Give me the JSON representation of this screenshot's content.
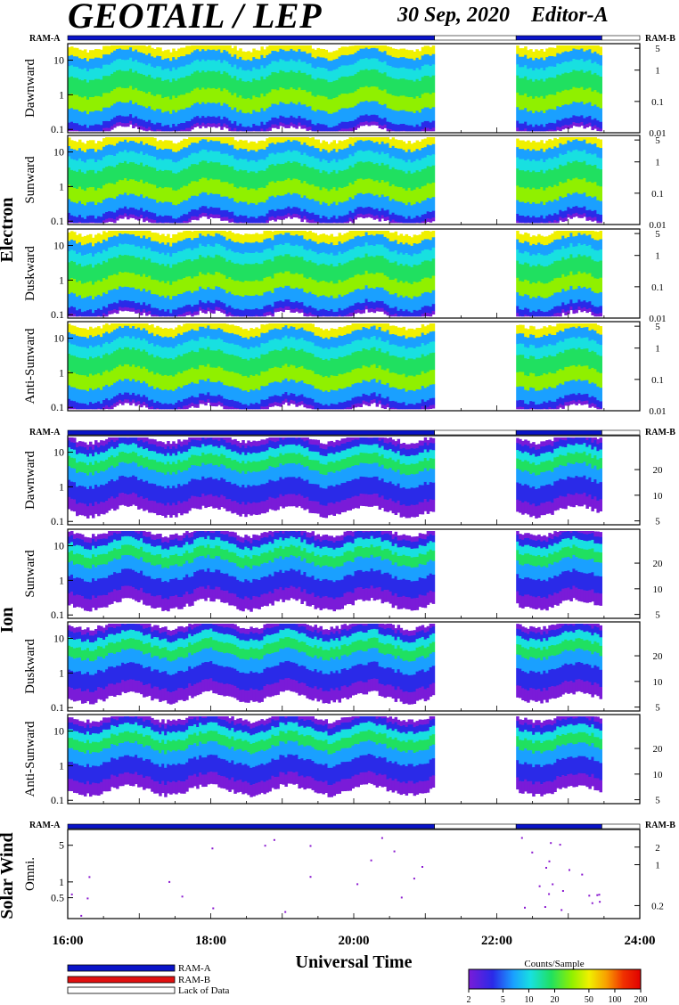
{
  "header": {
    "title": "GEOTAIL / LEP",
    "date": "30 Sep, 2020",
    "editor": "Editor-A"
  },
  "colors": {
    "ram_a": "#0a14c8",
    "ram_b": "#e01010",
    "lack_of_data": "#ffffff",
    "colorbar": [
      "#7a1bd8",
      "#2a2ae8",
      "#1aa0ff",
      "#18e0e0",
      "#20e060",
      "#90f000",
      "#f0f000",
      "#f8a000",
      "#f03000",
      "#e00000"
    ]
  },
  "legend": {
    "ram_a": "RAM-A",
    "ram_b": "RAM-B",
    "lack": "Lack of Data"
  },
  "colorbar": {
    "title": "Counts/Sample",
    "ticks": [
      "2",
      "5",
      "10",
      "20",
      "50",
      "100",
      "200"
    ]
  },
  "sections": {
    "electron": "Electron",
    "ion": "Ion",
    "solar_wind": "Solar Wind"
  },
  "x_axis": {
    "title": "Universal Time",
    "ticks": [
      "16:00",
      "18:00",
      "20:00",
      "22:00",
      "24:00"
    ]
  },
  "chart_data": {
    "type": "heatmap",
    "title": "GEOTAIL / LEP",
    "x_range_ut_hours": [
      16,
      24
    ],
    "x_ticks": [
      "16:00",
      "18:00",
      "20:00",
      "22:00",
      "24:00"
    ],
    "x_label": "Universal Time",
    "mode_bar": [
      {
        "mode": "RAM-A",
        "start": 16.0,
        "end": 21.13
      },
      {
        "mode": "Lack of Data",
        "start": 21.13,
        "end": 22.27
      },
      {
        "mode": "RAM-A",
        "start": 22.27,
        "end": 23.47
      },
      {
        "mode": "Lack of Data",
        "start": 23.47,
        "end": 24.0
      }
    ],
    "data_coverage": [
      [
        16.0,
        21.13
      ],
      [
        22.27,
        23.47
      ]
    ],
    "colorbar": {
      "label": "Counts/Sample",
      "range": [
        2,
        200
      ],
      "scale": "log"
    },
    "groups": [
      {
        "name": "Electron",
        "panels": [
          {
            "label": "Dawnward",
            "left_ticks": [
              "10",
              "1",
              "0.1"
            ],
            "right_ticks": [
              "5",
              "1",
              "0.1",
              "0.01"
            ]
          },
          {
            "label": "Sunward",
            "left_ticks": [
              "10",
              "1",
              "0.1"
            ],
            "right_ticks": [
              "5",
              "1",
              "0.1",
              "0.01"
            ]
          },
          {
            "label": "Duskward",
            "left_ticks": [
              "10",
              "1",
              "0.1"
            ],
            "right_ticks": [
              "5",
              "1",
              "0.1",
              "0.01"
            ]
          },
          {
            "label": "Anti-Sunward",
            "left_ticks": [
              "10",
              "1",
              "0.1"
            ],
            "right_ticks": [
              "5",
              "1",
              "0.1",
              "0.01"
            ]
          }
        ]
      },
      {
        "name": "Ion",
        "panels": [
          {
            "label": "Dawnward",
            "left_ticks": [
              "10",
              "1",
              "0.1"
            ],
            "right_ticks": [
              "20",
              "10",
              "5"
            ]
          },
          {
            "label": "Sunward",
            "left_ticks": [
              "10",
              "1",
              "0.1"
            ],
            "right_ticks": [
              "20",
              "10",
              "5"
            ]
          },
          {
            "label": "Duskward",
            "left_ticks": [
              "10",
              "1",
              "0.1"
            ],
            "right_ticks": [
              "20",
              "10",
              "5"
            ]
          },
          {
            "label": "Anti-Sunward",
            "left_ticks": [
              "10",
              "1",
              "0.1"
            ],
            "right_ticks": [
              "20",
              "10",
              "5"
            ]
          }
        ]
      },
      {
        "name": "Solar Wind",
        "panels": [
          {
            "label": "Omni.",
            "left_ticks": [
              "5",
              "1",
              "0.5"
            ],
            "right_ticks": [
              "2",
              "1",
              "0.2"
            ]
          }
        ]
      }
    ]
  }
}
